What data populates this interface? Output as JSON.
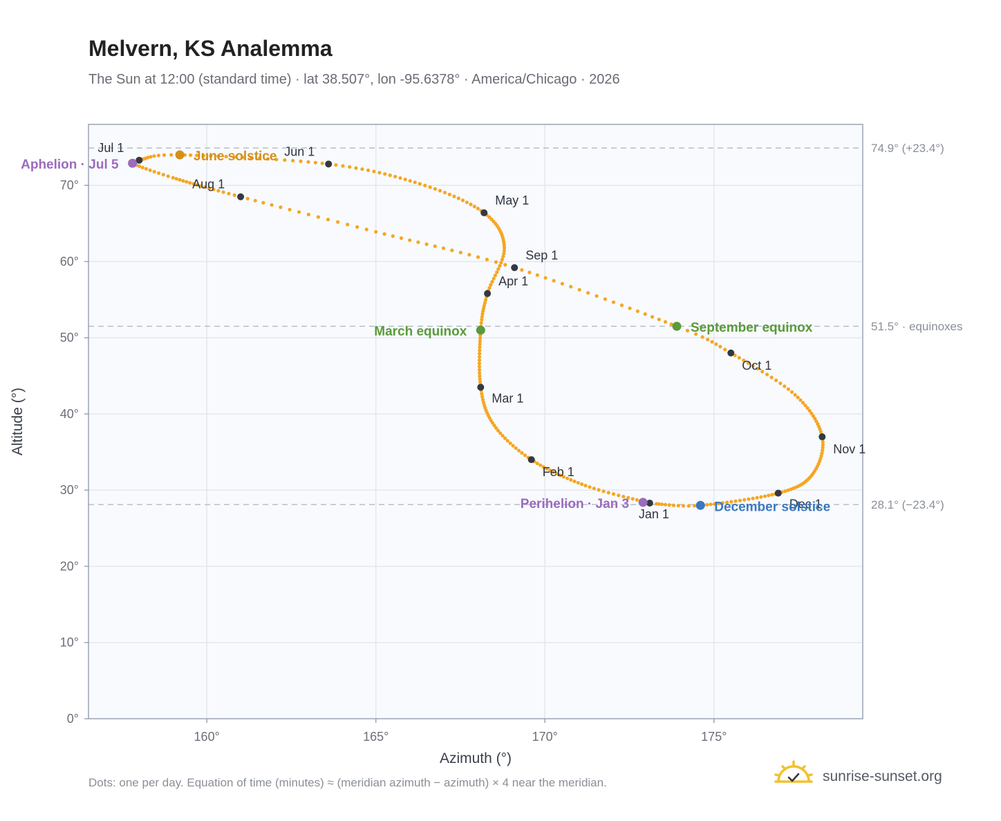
{
  "header": {
    "title": "Melvern, KS Analemma",
    "subtitle": "The Sun at 12:00 (standard time) · lat 38.507°, lon -95.6378° · America/Chicago · 2026"
  },
  "footer": {
    "note": "Dots: one per day. Equation of time (minutes) ≈ (meridian azimuth − azimuth) × 4 near the meridian.",
    "brand": "sunrise-sunset.org"
  },
  "colors": {
    "path": "#f5a623",
    "month_marker": "#333842",
    "solstice_june": "#d4901a",
    "solstice_december": "#3a78c0",
    "equinox": "#5a9a3a",
    "aphelion_perihelion": "#9b6bbd",
    "reference_line": "#b8bec7",
    "grid": "#e3e8ee",
    "plot_bg": "#f8fafd"
  },
  "chart_data": {
    "type": "scatter",
    "title": "Melvern, KS Analemma",
    "xlabel": "Azimuth (°)",
    "ylabel": "Altitude (°)",
    "xlim": [
      156.5,
      179.4
    ],
    "ylim": [
      0,
      78
    ],
    "xticks": [
      160,
      165,
      170,
      175
    ],
    "xtick_labels": [
      "160°",
      "165°",
      "170°",
      "175°"
    ],
    "yticks": [
      0,
      10,
      20,
      30,
      40,
      50,
      60,
      70
    ],
    "ytick_labels": [
      "0°",
      "10°",
      "20°",
      "30°",
      "40°",
      "50°",
      "60°",
      "70°"
    ],
    "grid": true,
    "reference_lines": [
      {
        "y": 74.9,
        "label": "74.9° (+23.4°)"
      },
      {
        "y": 51.5,
        "label": "51.5° · equinoxes"
      },
      {
        "y": 28.1,
        "label": "28.1° (−23.4°)"
      }
    ],
    "months": [
      {
        "label": "Jan 1",
        "date": "2026-01-01",
        "az": 173.1,
        "alt": 28.3
      },
      {
        "label": "Feb 1",
        "date": "2026-02-01",
        "az": 169.6,
        "alt": 34.0
      },
      {
        "label": "Mar 1",
        "date": "2026-03-01",
        "az": 168.1,
        "alt": 43.5
      },
      {
        "label": "Apr 1",
        "date": "2026-04-01",
        "az": 168.3,
        "alt": 55.8
      },
      {
        "label": "May 1",
        "date": "2026-05-01",
        "az": 168.2,
        "alt": 66.4
      },
      {
        "label": "Jun 1",
        "date": "2026-06-01",
        "az": 163.6,
        "alt": 72.8
      },
      {
        "label": "Jul 1",
        "date": "2026-07-01",
        "az": 158.0,
        "alt": 73.3
      },
      {
        "label": "Aug 1",
        "date": "2026-08-01",
        "az": 161.0,
        "alt": 68.5
      },
      {
        "label": "Sep 1",
        "date": "2026-09-01",
        "az": 169.1,
        "alt": 59.2
      },
      {
        "label": "Oct 1",
        "date": "2026-10-01",
        "az": 175.5,
        "alt": 48.0
      },
      {
        "label": "Nov 1",
        "date": "2026-11-01",
        "az": 178.2,
        "alt": 37.0
      },
      {
        "label": "Dec 1",
        "date": "2026-12-01",
        "az": 176.9,
        "alt": 29.6
      }
    ],
    "events": [
      {
        "label": "June solstice",
        "date": "2026-06-21",
        "az": 159.2,
        "alt": 74.0,
        "kind": "solstice_june"
      },
      {
        "label": "December solstice",
        "date": "2026-12-21",
        "az": 174.6,
        "alt": 28.0,
        "kind": "solstice_december"
      },
      {
        "label": "March equinox",
        "date": "2026-03-20",
        "az": 168.1,
        "alt": 51.0,
        "kind": "equinox"
      },
      {
        "label": "September equinox",
        "date": "2026-09-22",
        "az": 173.9,
        "alt": 51.5,
        "kind": "equinox"
      },
      {
        "label": "Aphelion · Jul 5",
        "date": "2026-07-05",
        "az": 157.8,
        "alt": 72.9,
        "kind": "aphelion_perihelion"
      },
      {
        "label": "Perihelion · Jan 3",
        "date": "2026-01-03",
        "az": 172.9,
        "alt": 28.4,
        "kind": "aphelion_perihelion"
      }
    ],
    "path": [
      {
        "date": "2026-01-01",
        "az": 173.1,
        "alt": 28.3
      },
      {
        "date": "2026-01-16",
        "az": 171.2,
        "alt": 30.6
      },
      {
        "date": "2026-02-01",
        "az": 169.6,
        "alt": 34.0
      },
      {
        "date": "2026-02-15",
        "az": 168.5,
        "alt": 38.5
      },
      {
        "date": "2026-03-01",
        "az": 168.1,
        "alt": 43.5
      },
      {
        "date": "2026-03-20",
        "az": 168.1,
        "alt": 51.0
      },
      {
        "date": "2026-04-01",
        "az": 168.3,
        "alt": 55.8
      },
      {
        "date": "2026-04-16",
        "az": 168.8,
        "alt": 61.8
      },
      {
        "date": "2026-05-01",
        "az": 168.2,
        "alt": 66.4
      },
      {
        "date": "2026-05-16",
        "az": 166.3,
        "alt": 70.2
      },
      {
        "date": "2026-06-01",
        "az": 163.6,
        "alt": 72.8
      },
      {
        "date": "2026-06-21",
        "az": 159.2,
        "alt": 74.0
      },
      {
        "date": "2026-07-01",
        "az": 158.0,
        "alt": 73.3
      },
      {
        "date": "2026-07-05",
        "az": 157.8,
        "alt": 72.9
      },
      {
        "date": "2026-07-16",
        "az": 159.0,
        "alt": 71.0
      },
      {
        "date": "2026-08-01",
        "az": 161.0,
        "alt": 68.5
      },
      {
        "date": "2026-08-16",
        "az": 165.0,
        "alt": 63.9
      },
      {
        "date": "2026-09-01",
        "az": 169.1,
        "alt": 59.2
      },
      {
        "date": "2026-09-22",
        "az": 173.9,
        "alt": 51.5
      },
      {
        "date": "2026-10-01",
        "az": 175.5,
        "alt": 48.0
      },
      {
        "date": "2026-10-16",
        "az": 177.4,
        "alt": 42.5
      },
      {
        "date": "2026-11-01",
        "az": 178.2,
        "alt": 37.0
      },
      {
        "date": "2026-11-16",
        "az": 177.9,
        "alt": 32.0
      },
      {
        "date": "2026-12-01",
        "az": 176.9,
        "alt": 29.6
      },
      {
        "date": "2026-12-21",
        "az": 174.6,
        "alt": 28.0
      },
      {
        "date": "2026-12-31",
        "az": 173.3,
        "alt": 28.2
      }
    ]
  }
}
